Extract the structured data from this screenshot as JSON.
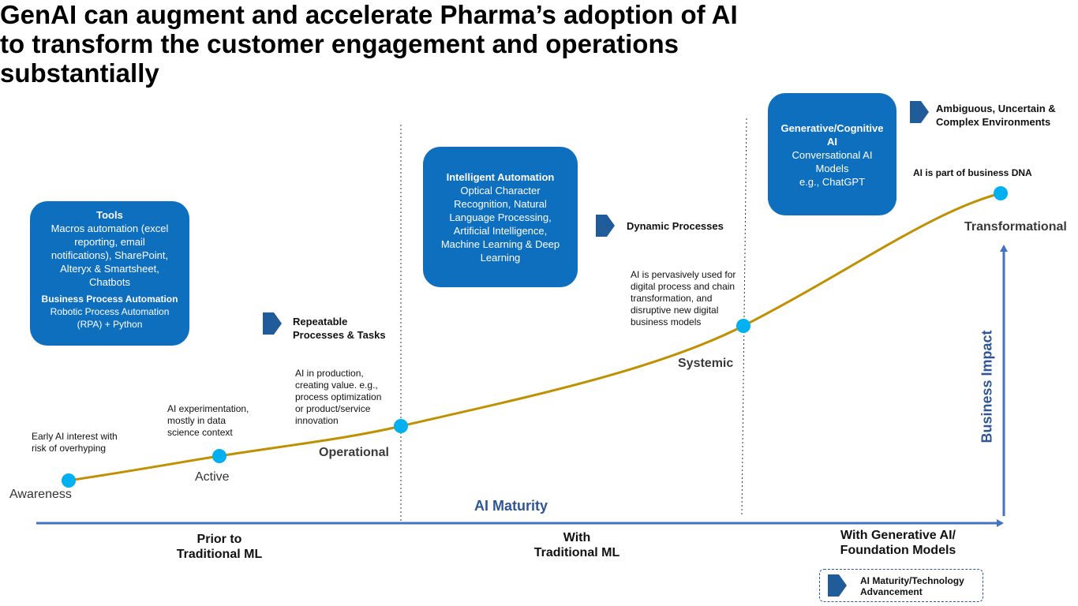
{
  "title": {
    "line1": "GenAI can augment and accelerate Pharma’s adoption of AI",
    "line2": "to transform the customer engagement and operations",
    "line3": "substantially"
  },
  "boxes": {
    "tools": {
      "heading": "Tools",
      "body": [
        "Macros automation (excel",
        "reporting, email",
        "notifications), SharePoint,",
        "Alteryx & Smartsheet,",
        "Chatbots"
      ],
      "heading2": "Business Process Automation",
      "body2": [
        "Robotic  Process Automation",
        "(RPA) + Python"
      ]
    },
    "intelligent": {
      "heading": "Intelligent Automation",
      "body": [
        "Optical Character",
        "Recognition, Natural",
        "Language Processing,",
        "Artificial Intelligence,",
        "Machine Learning & Deep",
        "Learning"
      ]
    },
    "generative": {
      "heading": [
        "Generative/Cognitive",
        "AI"
      ],
      "body": [
        "Conversational AI",
        "Models",
        "e.g., ChatGPT"
      ]
    }
  },
  "traits": {
    "repeatable": [
      "Repeatable",
      "Processes & Tasks"
    ],
    "dynamic": [
      "Dynamic Processes"
    ],
    "ambiguous": [
      "Ambiguous, Uncertain &",
      "Complex Environments"
    ]
  },
  "notes": {
    "awareness": [
      "Early AI interest with",
      "risk of overhyping"
    ],
    "active": [
      "AI experimentation,",
      "mostly in data",
      "science context"
    ],
    "operational": [
      "AI in production,",
      "creating value. e.g.,",
      "process optimization",
      "or product/service",
      "innovation"
    ],
    "systemic": [
      "AI is pervasively used for",
      "digital process and chain",
      "transformation, and",
      "disruptive new digital",
      "business models"
    ],
    "transformational": [
      "AI is part of business DNA"
    ]
  },
  "stages": {
    "awareness": "Awareness",
    "active": "Active",
    "operational": "Operational",
    "systemic": "Systemic",
    "transformational": "Transformational"
  },
  "axes": {
    "x_label": "AI Maturity",
    "y_label": "Business Impact"
  },
  "eras": {
    "prior": [
      "Prior to",
      "Traditional ML"
    ],
    "with": [
      "With",
      "Traditional ML"
    ],
    "genai": [
      "With Generative AI/",
      "Foundation Models"
    ]
  },
  "legend": {
    "label": [
      "AI Maturity/Technology",
      "Advancement"
    ]
  },
  "colors": {
    "box_blue": "#0e6fbf",
    "axis_blue": "#4472c4",
    "curve_gold": "#bf9000",
    "point_cyan": "#00b0f0",
    "label_blue": "#2f5597",
    "chevron_blue": "#1f5c99"
  },
  "icons": {
    "chevron": "chevron-right-icon"
  }
}
